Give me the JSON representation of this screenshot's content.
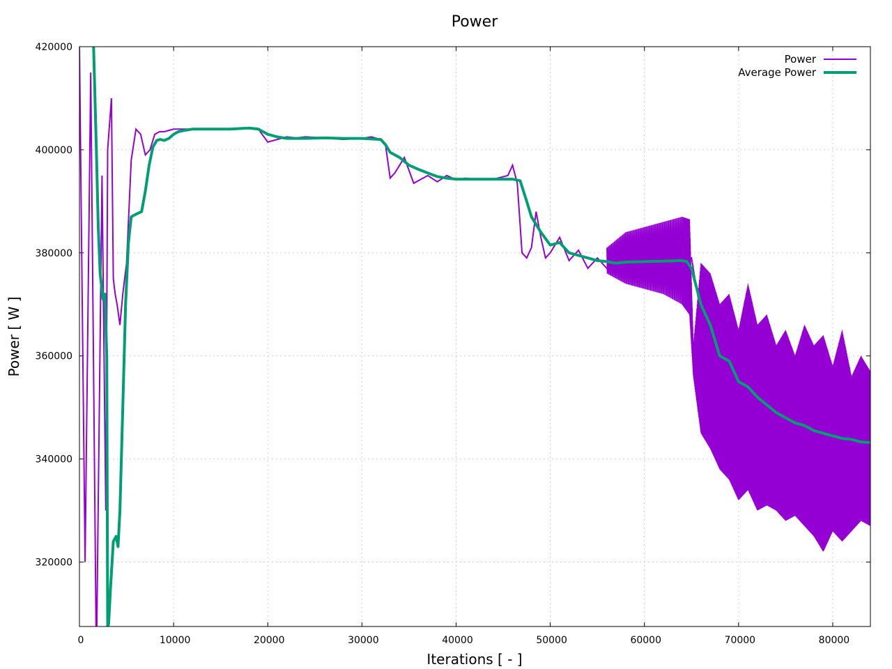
{
  "chart_data": {
    "type": "line",
    "title": "Power",
    "xlabel": "Iterations [ - ]",
    "ylabel": "Power [ W ]",
    "xlim": [
      0,
      84000
    ],
    "ylim": [
      307500,
      420000
    ],
    "x_ticks": [
      0,
      10000,
      20000,
      30000,
      40000,
      50000,
      60000,
      70000,
      80000
    ],
    "y_ticks": [
      320000,
      340000,
      360000,
      380000,
      400000,
      420000
    ],
    "grid": true,
    "legend_position": "top-right",
    "series": [
      {
        "name": "Power",
        "color": "#9400d3",
        "style": "thin-oscillating",
        "x": [
          0,
          600,
          1200,
          1800,
          2400,
          2800,
          3000,
          3200,
          3400,
          3600,
          3800,
          4000,
          4300,
          4600,
          5000,
          5500,
          6000,
          6500,
          7000,
          7500,
          8000,
          8500,
          9000,
          10000,
          11000,
          12000,
          14000,
          16000,
          18000,
          19000,
          20000,
          21000,
          22000,
          23000,
          24000,
          26000,
          28000,
          30000,
          31000,
          32000,
          32500,
          33000,
          33500,
          34000,
          34500,
          35000,
          35500,
          36000,
          37000,
          38000,
          39000,
          40000,
          41000,
          42000,
          44000,
          45500,
          46000,
          46500,
          47000,
          47500,
          48000,
          48500,
          49000,
          49500,
          50000,
          51000,
          52000,
          53000,
          54000,
          55000,
          56000,
          58000,
          60000,
          62000,
          64000,
          65000,
          66000,
          67000,
          68000,
          69000,
          70000,
          72000,
          74000,
          76000,
          78000,
          80000,
          82000,
          84000
        ],
        "values": [
          420000,
          320000,
          415000,
          300000,
          395000,
          330000,
          400000,
          405000,
          410000,
          375000,
          372000,
          370000,
          366000,
          372000,
          378000,
          398000,
          404000,
          403000,
          399000,
          400000,
          403000,
          403500,
          403500,
          404000,
          404000,
          404000,
          404000,
          404000,
          404200,
          404000,
          401500,
          402000,
          402500,
          402300,
          402500,
          402300,
          402000,
          402200,
          402500,
          402000,
          401000,
          394500,
          395500,
          397000,
          398500,
          396000,
          393500,
          394000,
          395000,
          393800,
          395000,
          394200,
          394500,
          394300,
          394300,
          395000,
          397000,
          393500,
          380000,
          379000,
          381000,
          388000,
          383000,
          379000,
          380000,
          383000,
          378500,
          380500,
          377000,
          379000,
          377000,
          378500,
          378500,
          378000,
          378000,
          379000,
          368000,
          362000,
          360000,
          356000,
          352000,
          349000,
          347000,
          345000,
          344500,
          343000,
          342000,
          342500
        ],
        "band_x": [
          56000,
          58000,
          60000,
          62000,
          64000,
          64800,
          65200,
          66000,
          67000,
          68000,
          69000,
          70000,
          71000,
          72000,
          73000,
          74000,
          75000,
          76000,
          77000,
          78000,
          79000,
          80000,
          81000,
          82000,
          83000,
          84000
        ],
        "band_high": [
          381000,
          384000,
          385000,
          386000,
          387000,
          386500,
          362000,
          378000,
          376000,
          370000,
          372000,
          365000,
          374000,
          366000,
          368000,
          362000,
          365000,
          360000,
          366000,
          362000,
          364000,
          358000,
          365000,
          356000,
          360000,
          357000
        ],
        "band_low": [
          376000,
          374000,
          373000,
          372000,
          370000,
          368000,
          356000,
          345000,
          342000,
          338000,
          336000,
          332000,
          334000,
          330000,
          331000,
          330000,
          328000,
          329000,
          327000,
          325000,
          322000,
          326000,
          324000,
          326000,
          328000,
          327000
        ]
      },
      {
        "name": "Average Power",
        "color": "#009e73",
        "style": "thick",
        "x": [
          1500,
          1800,
          2000,
          2200,
          2500,
          2700,
          2900,
          3000,
          3100,
          3300,
          3600,
          3900,
          4100,
          4300,
          4600,
          4900,
          5200,
          5500,
          6000,
          6600,
          7000,
          7400,
          7800,
          8200,
          8600,
          9000,
          9500,
          10000,
          10500,
          11000,
          12000,
          14000,
          16000,
          18000,
          19000,
          20000,
          21000,
          22000,
          24000,
          26000,
          28000,
          30000,
          32000,
          32500,
          33000,
          34000,
          35000,
          36000,
          37000,
          38000,
          39000,
          40000,
          42000,
          44000,
          46000,
          46800,
          47500,
          48000,
          49000,
          50000,
          51000,
          52000,
          53000,
          54000,
          55000,
          56000,
          57000,
          58000,
          60000,
          62000,
          64000,
          64500,
          65000,
          66000,
          67000,
          68000,
          69000,
          70000,
          71000,
          72000,
          73000,
          74000,
          75000,
          76000,
          77000,
          78000,
          79000,
          80000,
          81000,
          82000,
          83000,
          84000
        ],
        "values": [
          420000,
          400000,
          385000,
          376000,
          371000,
          372000,
          360000,
          307500,
          308000,
          315000,
          324000,
          325000,
          323000,
          330000,
          350000,
          370000,
          382000,
          387000,
          387500,
          388000,
          392000,
          397000,
          400500,
          401800,
          402000,
          401800,
          402200,
          403000,
          403500,
          403700,
          404000,
          404000,
          404000,
          404200,
          404000,
          403000,
          402500,
          402200,
          402200,
          402300,
          402200,
          402200,
          402000,
          401000,
          399500,
          398500,
          397000,
          396200,
          395500,
          394800,
          394500,
          394300,
          394300,
          394300,
          394300,
          394000,
          390000,
          387000,
          384000,
          381500,
          382000,
          380000,
          379500,
          379000,
          378500,
          378300,
          378000,
          378200,
          378300,
          378400,
          378500,
          378300,
          377000,
          370000,
          366000,
          360000,
          359000,
          355000,
          354000,
          352000,
          350500,
          349000,
          348000,
          347000,
          346500,
          345500,
          345000,
          344500,
          344000,
          343800,
          343300,
          343200
        ]
      }
    ]
  }
}
